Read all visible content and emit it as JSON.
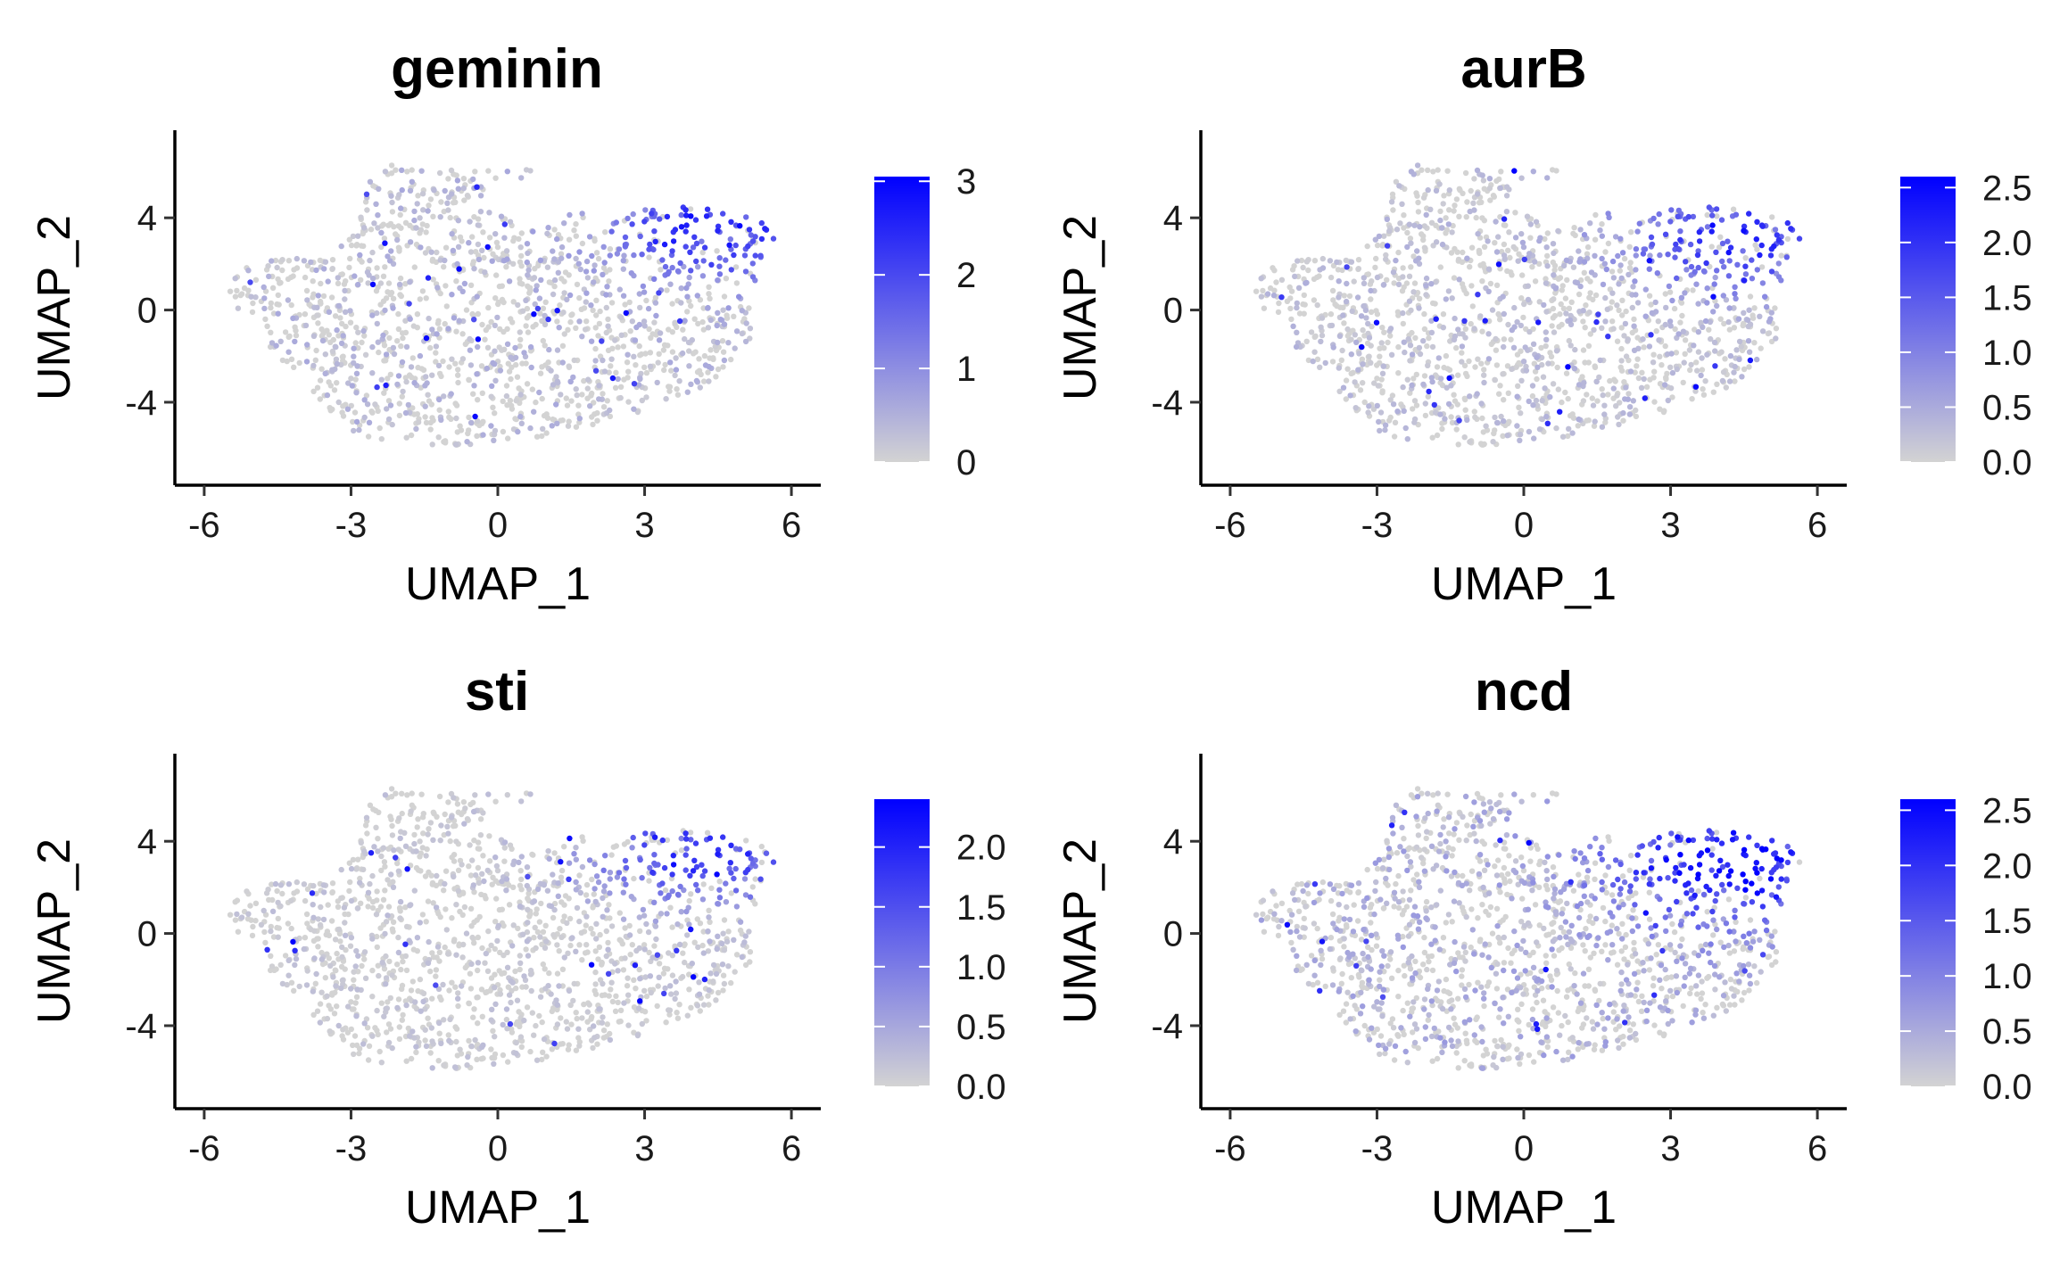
{
  "colors": {
    "low": "#d3d3d3",
    "high": "#0000ff"
  },
  "chart_data": [
    {
      "type": "scatter",
      "title": "geminin",
      "xlabel": "UMAP_1",
      "ylabel": "UMAP_2",
      "xlim": [
        -6.6,
        6.6
      ],
      "ylim": [
        -7.6,
        7.8
      ],
      "xticks": [
        -6,
        -3,
        0,
        3,
        6
      ],
      "xtick_labels": [
        "-6",
        "-3",
        "0",
        "3",
        "6"
      ],
      "yticks": [
        -4,
        0,
        4
      ],
      "ytick_labels": [
        "-4",
        "0",
        "4"
      ],
      "color_scale": {
        "min": 0,
        "max": 3.05,
        "breaks": [
          0,
          1,
          2,
          3
        ],
        "labels": [
          "0",
          "1",
          "2",
          "3"
        ]
      },
      "hotspot": {
        "x": 4.4,
        "y": 3.6,
        "peak": 2.1,
        "spread": 1.6
      },
      "background_mean": 0.35
    },
    {
      "type": "scatter",
      "title": "aurB",
      "xlabel": "UMAP_1",
      "ylabel": "UMAP_2",
      "xlim": [
        -6.6,
        6.6
      ],
      "ylim": [
        -7.6,
        7.8
      ],
      "xticks": [
        -6,
        -3,
        0,
        3,
        6
      ],
      "xtick_labels": [
        "-6",
        "-3",
        "0",
        "3",
        "6"
      ],
      "yticks": [
        -4,
        0,
        4
      ],
      "ytick_labels": [
        "-4",
        "0",
        "4"
      ],
      "color_scale": {
        "min": 0,
        "max": 2.6,
        "breaks": [
          0,
          0.5,
          1,
          1.5,
          2,
          2.5
        ],
        "labels": [
          "0.0",
          "0.5",
          "1.0",
          "1.5",
          "2.0",
          "2.5"
        ]
      },
      "hotspot": {
        "x": 4.3,
        "y": 3.2,
        "peak": 1.7,
        "spread": 1.6
      },
      "background_mean": 0.25
    },
    {
      "type": "scatter",
      "title": "sti",
      "xlabel": "UMAP_1",
      "ylabel": "UMAP_2",
      "xlim": [
        -6.6,
        6.6
      ],
      "ylim": [
        -7.6,
        7.8
      ],
      "xticks": [
        -6,
        -3,
        0,
        3,
        6
      ],
      "xtick_labels": [
        "-6",
        "-3",
        "0",
        "3",
        "6"
      ],
      "yticks": [
        -4,
        0,
        4
      ],
      "ytick_labels": [
        "-4",
        "0",
        "4"
      ],
      "color_scale": {
        "min": 0,
        "max": 2.4,
        "breaks": [
          0,
          0.5,
          1,
          1.5,
          2
        ],
        "labels": [
          "0.0",
          "0.5",
          "1.0",
          "1.5",
          "2.0"
        ]
      },
      "hotspot": {
        "x": 4.2,
        "y": 3.3,
        "peak": 1.6,
        "spread": 1.5
      },
      "background_mean": 0.15
    },
    {
      "type": "scatter",
      "title": "ncd",
      "xlabel": "UMAP_1",
      "ylabel": "UMAP_2",
      "xlim": [
        -6.6,
        6.6
      ],
      "ylim": [
        -7.6,
        7.8
      ],
      "xticks": [
        -6,
        -3,
        0,
        3,
        6
      ],
      "xtick_labels": [
        "-6",
        "-3",
        "0",
        "3",
        "6"
      ],
      "yticks": [
        -4,
        0,
        4
      ],
      "ytick_labels": [
        "-4",
        "0",
        "4"
      ],
      "color_scale": {
        "min": 0,
        "max": 2.6,
        "breaks": [
          0,
          0.5,
          1,
          1.5,
          2,
          2.5
        ],
        "labels": [
          "0.0",
          "0.5",
          "1.0",
          "1.5",
          "2.0",
          "2.5"
        ]
      },
      "hotspot": {
        "x": 4.2,
        "y": 3.0,
        "peak": 2.0,
        "spread": 1.8
      },
      "background_mean": 0.4
    }
  ]
}
